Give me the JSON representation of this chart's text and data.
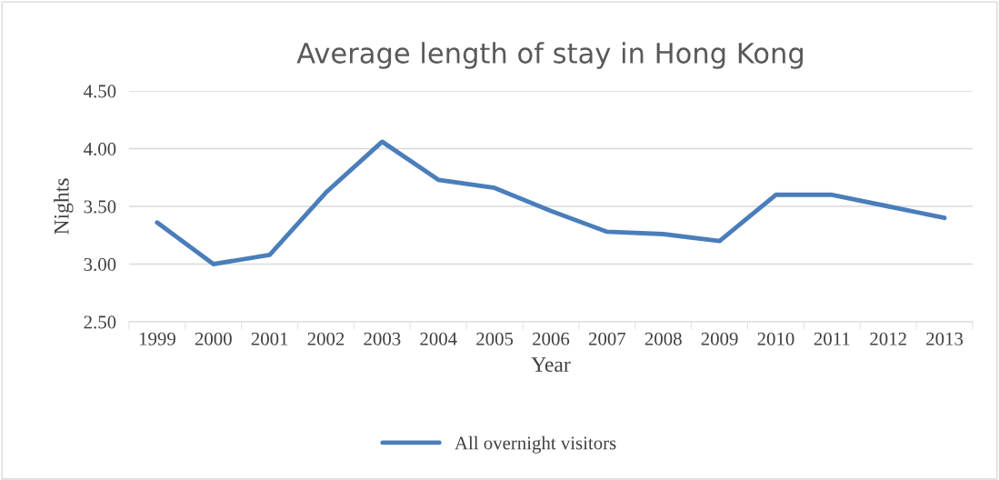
{
  "chart_data": {
    "type": "line",
    "title": "Average length of stay in Hong Kong",
    "xlabel": "Year",
    "ylabel": "Nights",
    "categories": [
      "1999",
      "2000",
      "2001",
      "2002",
      "2003",
      "2004",
      "2005",
      "2006",
      "2007",
      "2008",
      "2009",
      "2010",
      "2011",
      "2012",
      "2013"
    ],
    "series": [
      {
        "name": "All overnight visitors",
        "color": "#4a7ebb",
        "values": [
          3.36,
          3.0,
          3.08,
          3.62,
          4.06,
          3.73,
          3.66,
          3.46,
          3.28,
          3.26,
          3.2,
          3.6,
          3.6,
          3.5,
          3.4
        ]
      }
    ],
    "ylim": [
      2.5,
      4.5
    ],
    "yticks": [
      {
        "value": 2.5,
        "label": "2.50"
      },
      {
        "value": 3.0,
        "label": "3.00"
      },
      {
        "value": 3.5,
        "label": "3.50"
      },
      {
        "value": 4.0,
        "label": "4.00"
      },
      {
        "value": 4.5,
        "label": "4.50"
      }
    ],
    "grid": "y",
    "legend": "bottom",
    "marker": "none",
    "line_style": "solid"
  }
}
